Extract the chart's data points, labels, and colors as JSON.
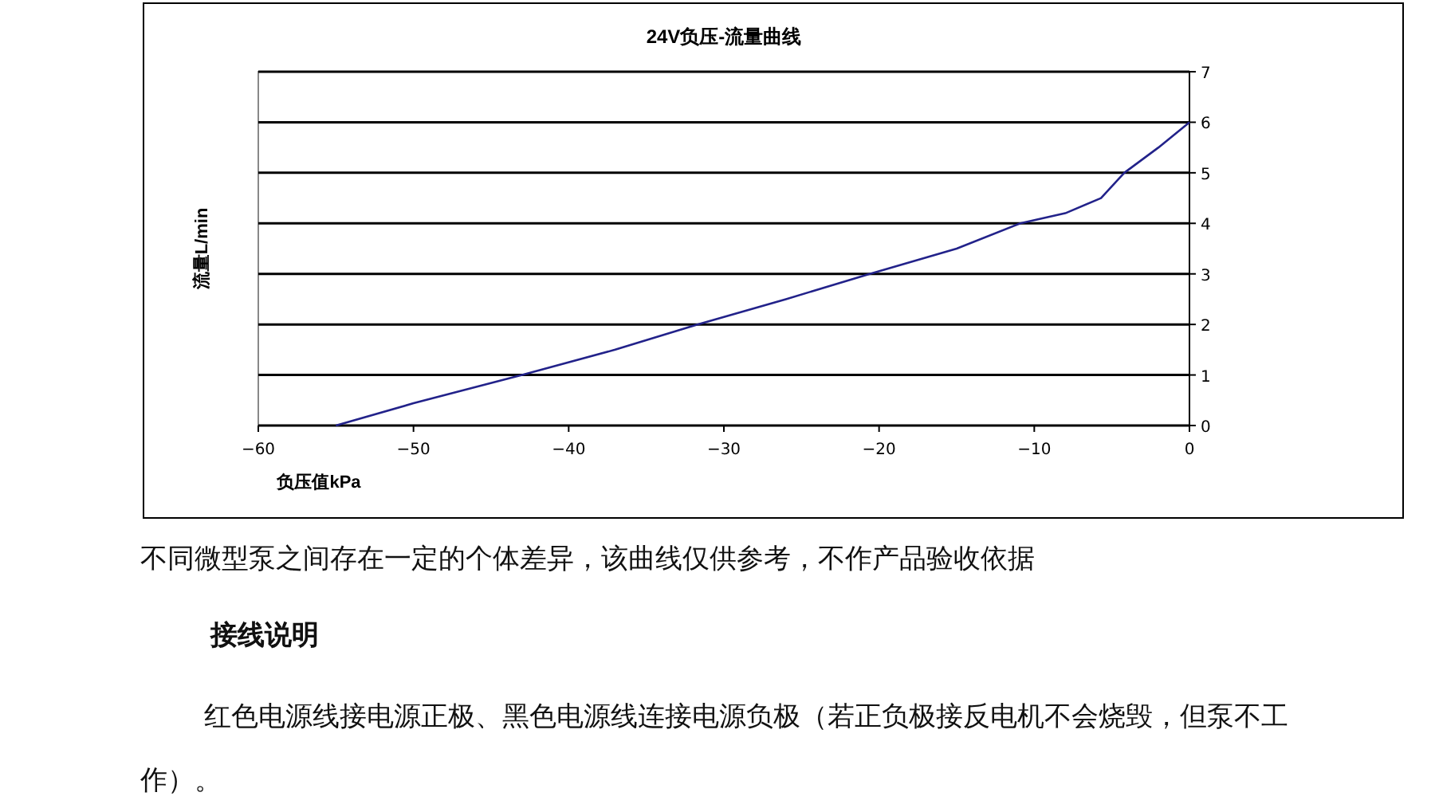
{
  "chart_data": {
    "type": "line",
    "title": "24V负压-流量曲线",
    "xlabel": "负压值kPa",
    "ylabel": "流量L/min",
    "x": [
      -55,
      -50,
      -43,
      -37,
      -31.7,
      -26,
      -20.6,
      -15,
      -10.9,
      -8,
      -5.7,
      -4.2,
      -2,
      0
    ],
    "series": [
      {
        "color": "#22228a",
        "values": [
          0,
          0.44,
          1,
          1.5,
          2,
          2.5,
          3,
          3.5,
          4,
          4.2,
          4.5,
          5,
          5.5,
          6
        ]
      }
    ],
    "xlim": [
      -60,
      0
    ],
    "ylim": [
      0,
      7
    ],
    "xticks": [
      {
        "value": -60,
        "label": "−60"
      },
      {
        "value": -50,
        "label": "−50"
      },
      {
        "value": -40,
        "label": "−40"
      },
      {
        "value": -30,
        "label": "−30"
      },
      {
        "value": -20,
        "label": "−20"
      },
      {
        "value": -10,
        "label": "−10"
      },
      0
    ],
    "yticks": [
      0,
      1,
      2,
      3,
      4,
      5,
      6,
      7
    ],
    "grid": "y",
    "annotations": [
      "不同微型泵之间存在一定的个体差异，该曲线仅供参考，不作产品验收依据",
      "接线说明",
      "红色电源线接电源正极、黑色电源线连接电源负极（若正负极接反电机不会烧毁，但泵不工作）。"
    ]
  }
}
